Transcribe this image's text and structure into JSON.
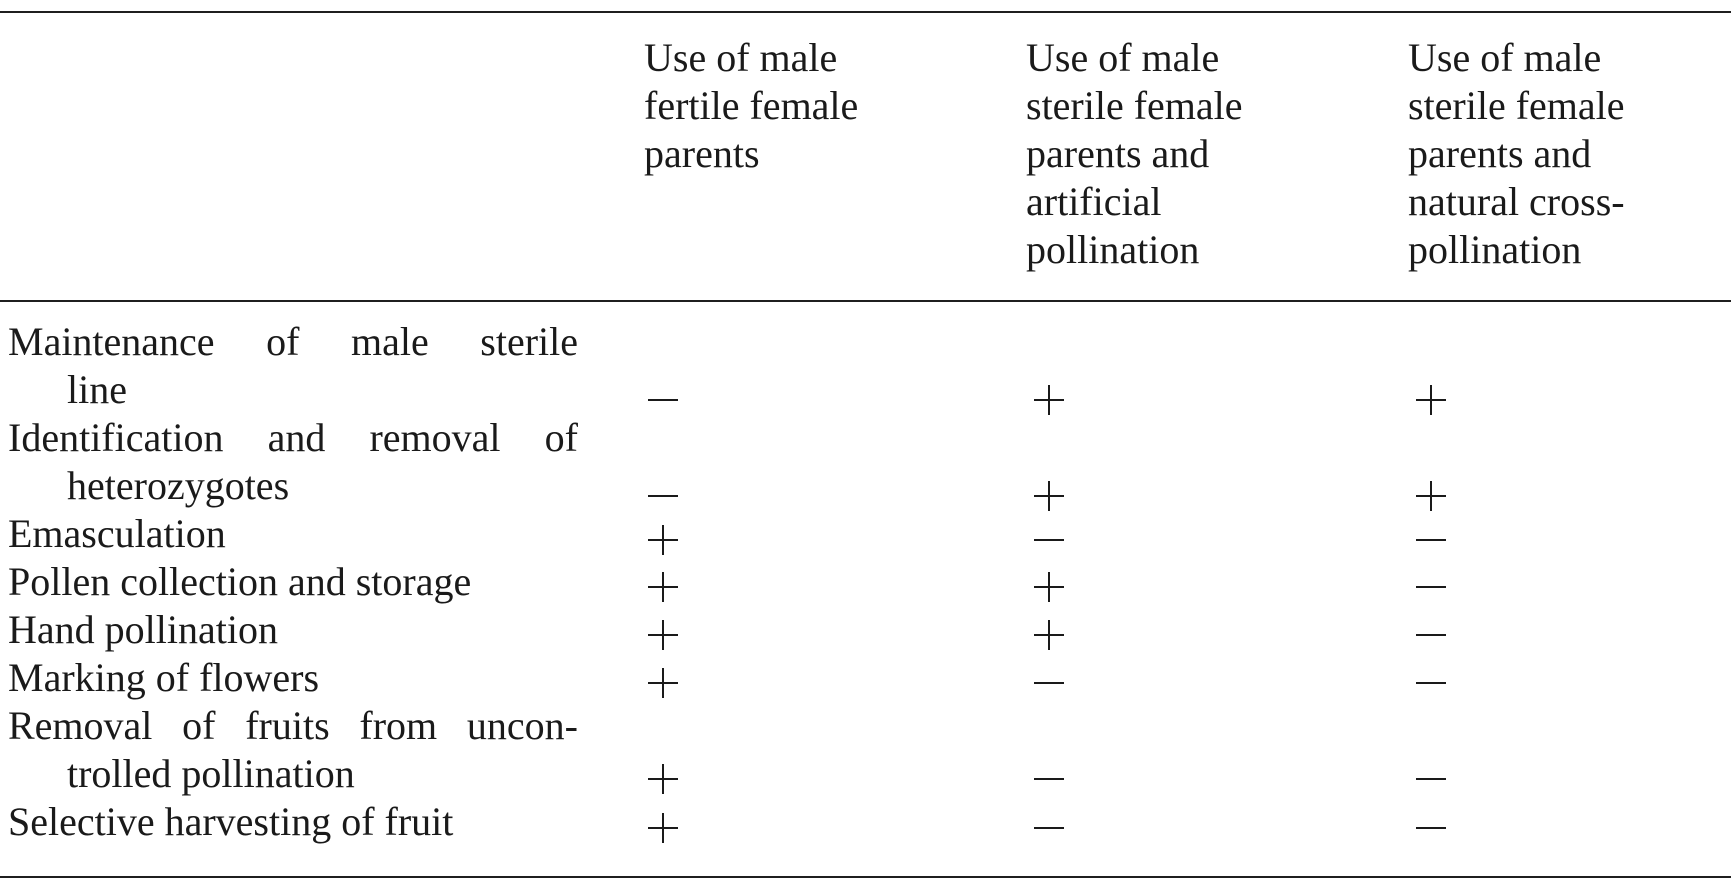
{
  "columns": [
    {
      "lines": [
        "Use of male",
        "fertile female",
        "parents"
      ]
    },
    {
      "lines": [
        "Use of male",
        "sterile female",
        "parents and",
        "artificial",
        "pollination"
      ]
    },
    {
      "lines": [
        "Use of male",
        "sterile female",
        "parents and",
        "natural cross-",
        "pollination"
      ]
    }
  ],
  "rows": [
    {
      "lines": [
        "Maintenance of male sterile",
        "line"
      ],
      "values": [
        "−",
        "+",
        "+"
      ]
    },
    {
      "lines": [
        "Identification and removal of",
        "heterozygotes"
      ],
      "values": [
        "−",
        "+",
        "+"
      ]
    },
    {
      "lines": [
        "Emasculation"
      ],
      "values": [
        "+",
        "−",
        "−"
      ]
    },
    {
      "lines": [
        "Pollen collection and storage"
      ],
      "values": [
        "+",
        "+",
        "−"
      ]
    },
    {
      "lines": [
        "Hand pollination"
      ],
      "values": [
        "+",
        "+",
        "−"
      ]
    },
    {
      "lines": [
        "Marking of flowers"
      ],
      "values": [
        "+",
        "−",
        "−"
      ]
    },
    {
      "lines": [
        "Removal of fruits from uncon-",
        "trolled pollination"
      ],
      "values": [
        "+",
        "−",
        "−"
      ]
    },
    {
      "lines": [
        "Selective harvesting of fruit"
      ],
      "values": [
        "+",
        "−",
        "−"
      ]
    }
  ]
}
